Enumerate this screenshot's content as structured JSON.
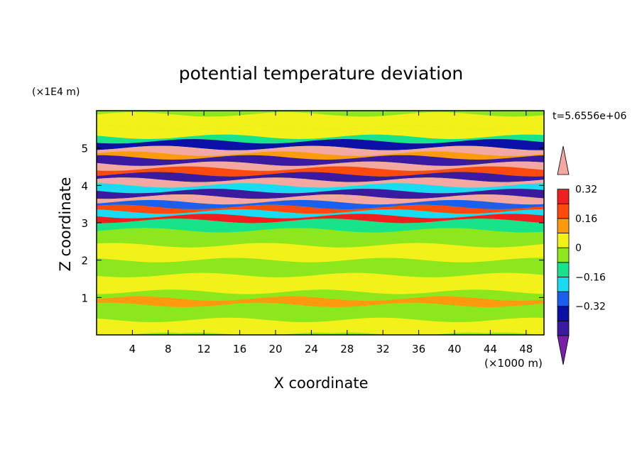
{
  "chart_data": {
    "type": "heatmap",
    "title": "potential temperature deviation",
    "xlabel": "X coordinate",
    "ylabel": "Z coordinate",
    "x_unit_label": "(×1000 m)",
    "y_unit_label": "(×1E4 m)",
    "time_label": "t=5.6556e+06",
    "xlim": [
      0,
      50
    ],
    "ylim": [
      0,
      6
    ],
    "x_ticks": [
      4,
      8,
      12,
      16,
      20,
      24,
      28,
      32,
      36,
      40,
      44,
      48
    ],
    "y_ticks": [
      1,
      2,
      3,
      4,
      5
    ],
    "colorbar": {
      "levels": [
        -0.48,
        -0.4,
        -0.32,
        -0.24,
        -0.16,
        -0.08,
        0,
        0.08,
        0.16,
        0.24,
        0.32,
        0.4
      ],
      "tick_values": [
        -0.32,
        -0.16,
        0,
        0.16,
        0.32
      ],
      "tick_labels": [
        "−0.32",
        "−0.16",
        "0",
        "0.16",
        "0.32"
      ],
      "colors": [
        "#7a1fa8",
        "#3a1ba0",
        "#0b10a6",
        "#1c5fef",
        "#19dcf2",
        "#17e38b",
        "#8ce81c",
        "#f2f21a",
        "#ff9a0f",
        "#ff4a0f",
        "#f01f1f",
        "#f4a8a2"
      ]
    },
    "bands": [
      {
        "z": 5.9,
        "v": 0.02
      },
      {
        "z": 5.55,
        "v": 0.05
      },
      {
        "z": 5.3,
        "v": -0.12
      },
      {
        "z": 5.18,
        "v": -0.4
      },
      {
        "z": 5.0,
        "v": 0.45
      },
      {
        "z": 4.85,
        "v": 0.1
      },
      {
        "z": 4.75,
        "v": -0.46
      },
      {
        "z": 4.58,
        "v": 0.45
      },
      {
        "z": 4.45,
        "v": 0.2
      },
      {
        "z": 4.3,
        "v": -0.45
      },
      {
        "z": 4.15,
        "v": 0.42
      },
      {
        "z": 4.0,
        "v": -0.2
      },
      {
        "z": 3.85,
        "v": -0.44
      },
      {
        "z": 3.7,
        "v": 0.44
      },
      {
        "z": 3.55,
        "v": -0.3
      },
      {
        "z": 3.42,
        "v": 0.18
      },
      {
        "z": 3.3,
        "v": -0.22
      },
      {
        "z": 3.18,
        "v": 0.3
      },
      {
        "z": 3.05,
        "v": -0.14
      },
      {
        "z": 2.8,
        "v": -0.05
      },
      {
        "z": 2.4,
        "v": 0.03
      },
      {
        "z": 2.0,
        "v": -0.04
      },
      {
        "z": 1.6,
        "v": 0.02
      },
      {
        "z": 1.15,
        "v": -0.03
      },
      {
        "z": 0.97,
        "v": 0.1
      },
      {
        "z": 0.8,
        "v": -0.04
      },
      {
        "z": 0.4,
        "v": 0.0
      },
      {
        "z": 0.0,
        "v": -0.02
      }
    ]
  }
}
